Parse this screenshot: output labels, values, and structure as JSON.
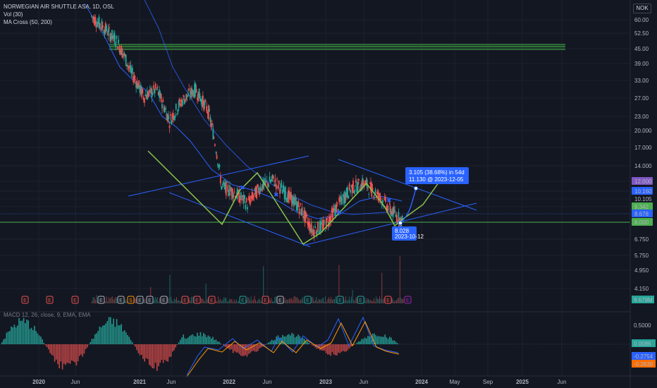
{
  "header": {
    "title": "NORWEGIAN AIR SHUTTLE ASA, 1D, OSL",
    "vol_label": "Vol (30)",
    "ma_label": "MA Cross (50, 200)",
    "currency": "NOK",
    "macd_label": "MACD 12, 26, close, 9, EMA, EMA"
  },
  "axes": {
    "price_ticks": [
      "60.00",
      "52.50",
      "45.00",
      "39.00",
      "33.00",
      "27.00",
      "23.00",
      "20.000",
      "17.000",
      "14.000",
      "12.000",
      "10.160",
      "10.105",
      "9.342",
      "8.678",
      "8.000",
      "6.750",
      "5.750",
      "4.950",
      "4.150"
    ],
    "macd_ticks": [
      "0.5000",
      "0.0086",
      "-0.2754",
      "-0.2839"
    ],
    "vol_tag": "9.679M",
    "time_ticks": [
      "2020",
      "Jun",
      "2021",
      "Jun",
      "2022",
      "Jun",
      "2023",
      "Jun",
      "2024",
      "May",
      "Sep",
      "2025",
      "Jun"
    ]
  },
  "colors": {
    "background": "#131722",
    "up": "#26a69a",
    "down": "#ef5350",
    "ma_line": "#2962ff",
    "pattern": "#8bc34a",
    "resistance": "#4caf50",
    "annotation": "#2962ff",
    "tag_purple": "#7e57c2",
    "tag_blue": "#2962ff",
    "tag_green": "#4caf50"
  },
  "annotations": {
    "target_label": "3.105 (38.68%) in 54d",
    "target_sub": "11.130 @ 2023-12-05",
    "low_label": "8.028",
    "low_sub": "2023-10-12"
  },
  "event_markers": [
    "E",
    "E",
    "E",
    "E",
    "S",
    "E",
    "E",
    "E",
    "E",
    "E",
    "E",
    "E",
    "E",
    "E",
    "E",
    "E",
    "E",
    "E",
    "E",
    "E"
  ],
  "chart_data": {
    "type": "candlestick",
    "title": "NORWEGIAN AIR SHUTTLE ASA, 1D, OSL",
    "currency": "NOK",
    "yscale": "log",
    "ylim": [
      4.0,
      66.0
    ],
    "x": [
      "2019-11",
      "2020-01",
      "2020-03",
      "2020-05",
      "2020-07",
      "2020-09",
      "2020-11",
      "2021-01",
      "2021-03",
      "2021-05",
      "2021-07",
      "2021-09",
      "2021-11",
      "2022-01",
      "2022-03",
      "2022-05",
      "2022-07",
      "2022-09",
      "2022-11",
      "2023-01",
      "2023-03",
      "2023-05",
      "2023-07",
      "2023-09",
      "2023-10"
    ],
    "close": [
      62,
      55,
      48,
      36,
      28,
      30,
      22,
      27,
      30,
      24,
      11.5,
      10.8,
      9.6,
      11.4,
      12.2,
      10.6,
      9.3,
      7.4,
      7.8,
      9.5,
      11.3,
      11.8,
      10.6,
      9.1,
      8.0
    ],
    "series": [
      {
        "name": "MA Cross (50, 200)",
        "values": [
          64,
          58,
          50,
          42,
          34,
          30,
          28,
          27,
          26,
          24,
          18,
          14,
          11.5,
          10.8,
          10.6,
          10.4,
          10.1,
          9.8,
          9.3,
          9.2,
          9.4,
          9.7,
          9.8,
          9.7,
          9.5
        ]
      }
    ],
    "horizontal_levels": [
      45.0,
      8.0
    ],
    "projection": {
      "from_date": "2023-10-12",
      "from_price": 8.028,
      "to_date": "2023-12-05",
      "to_price": 11.13,
      "change": 3.105,
      "change_pct": 38.68,
      "days": 54
    },
    "macd": {
      "macd": -0.2754,
      "signal": -0.2839,
      "histogram": 0.0086
    },
    "volume_last": "9.679M",
    "legend": "top-left"
  }
}
